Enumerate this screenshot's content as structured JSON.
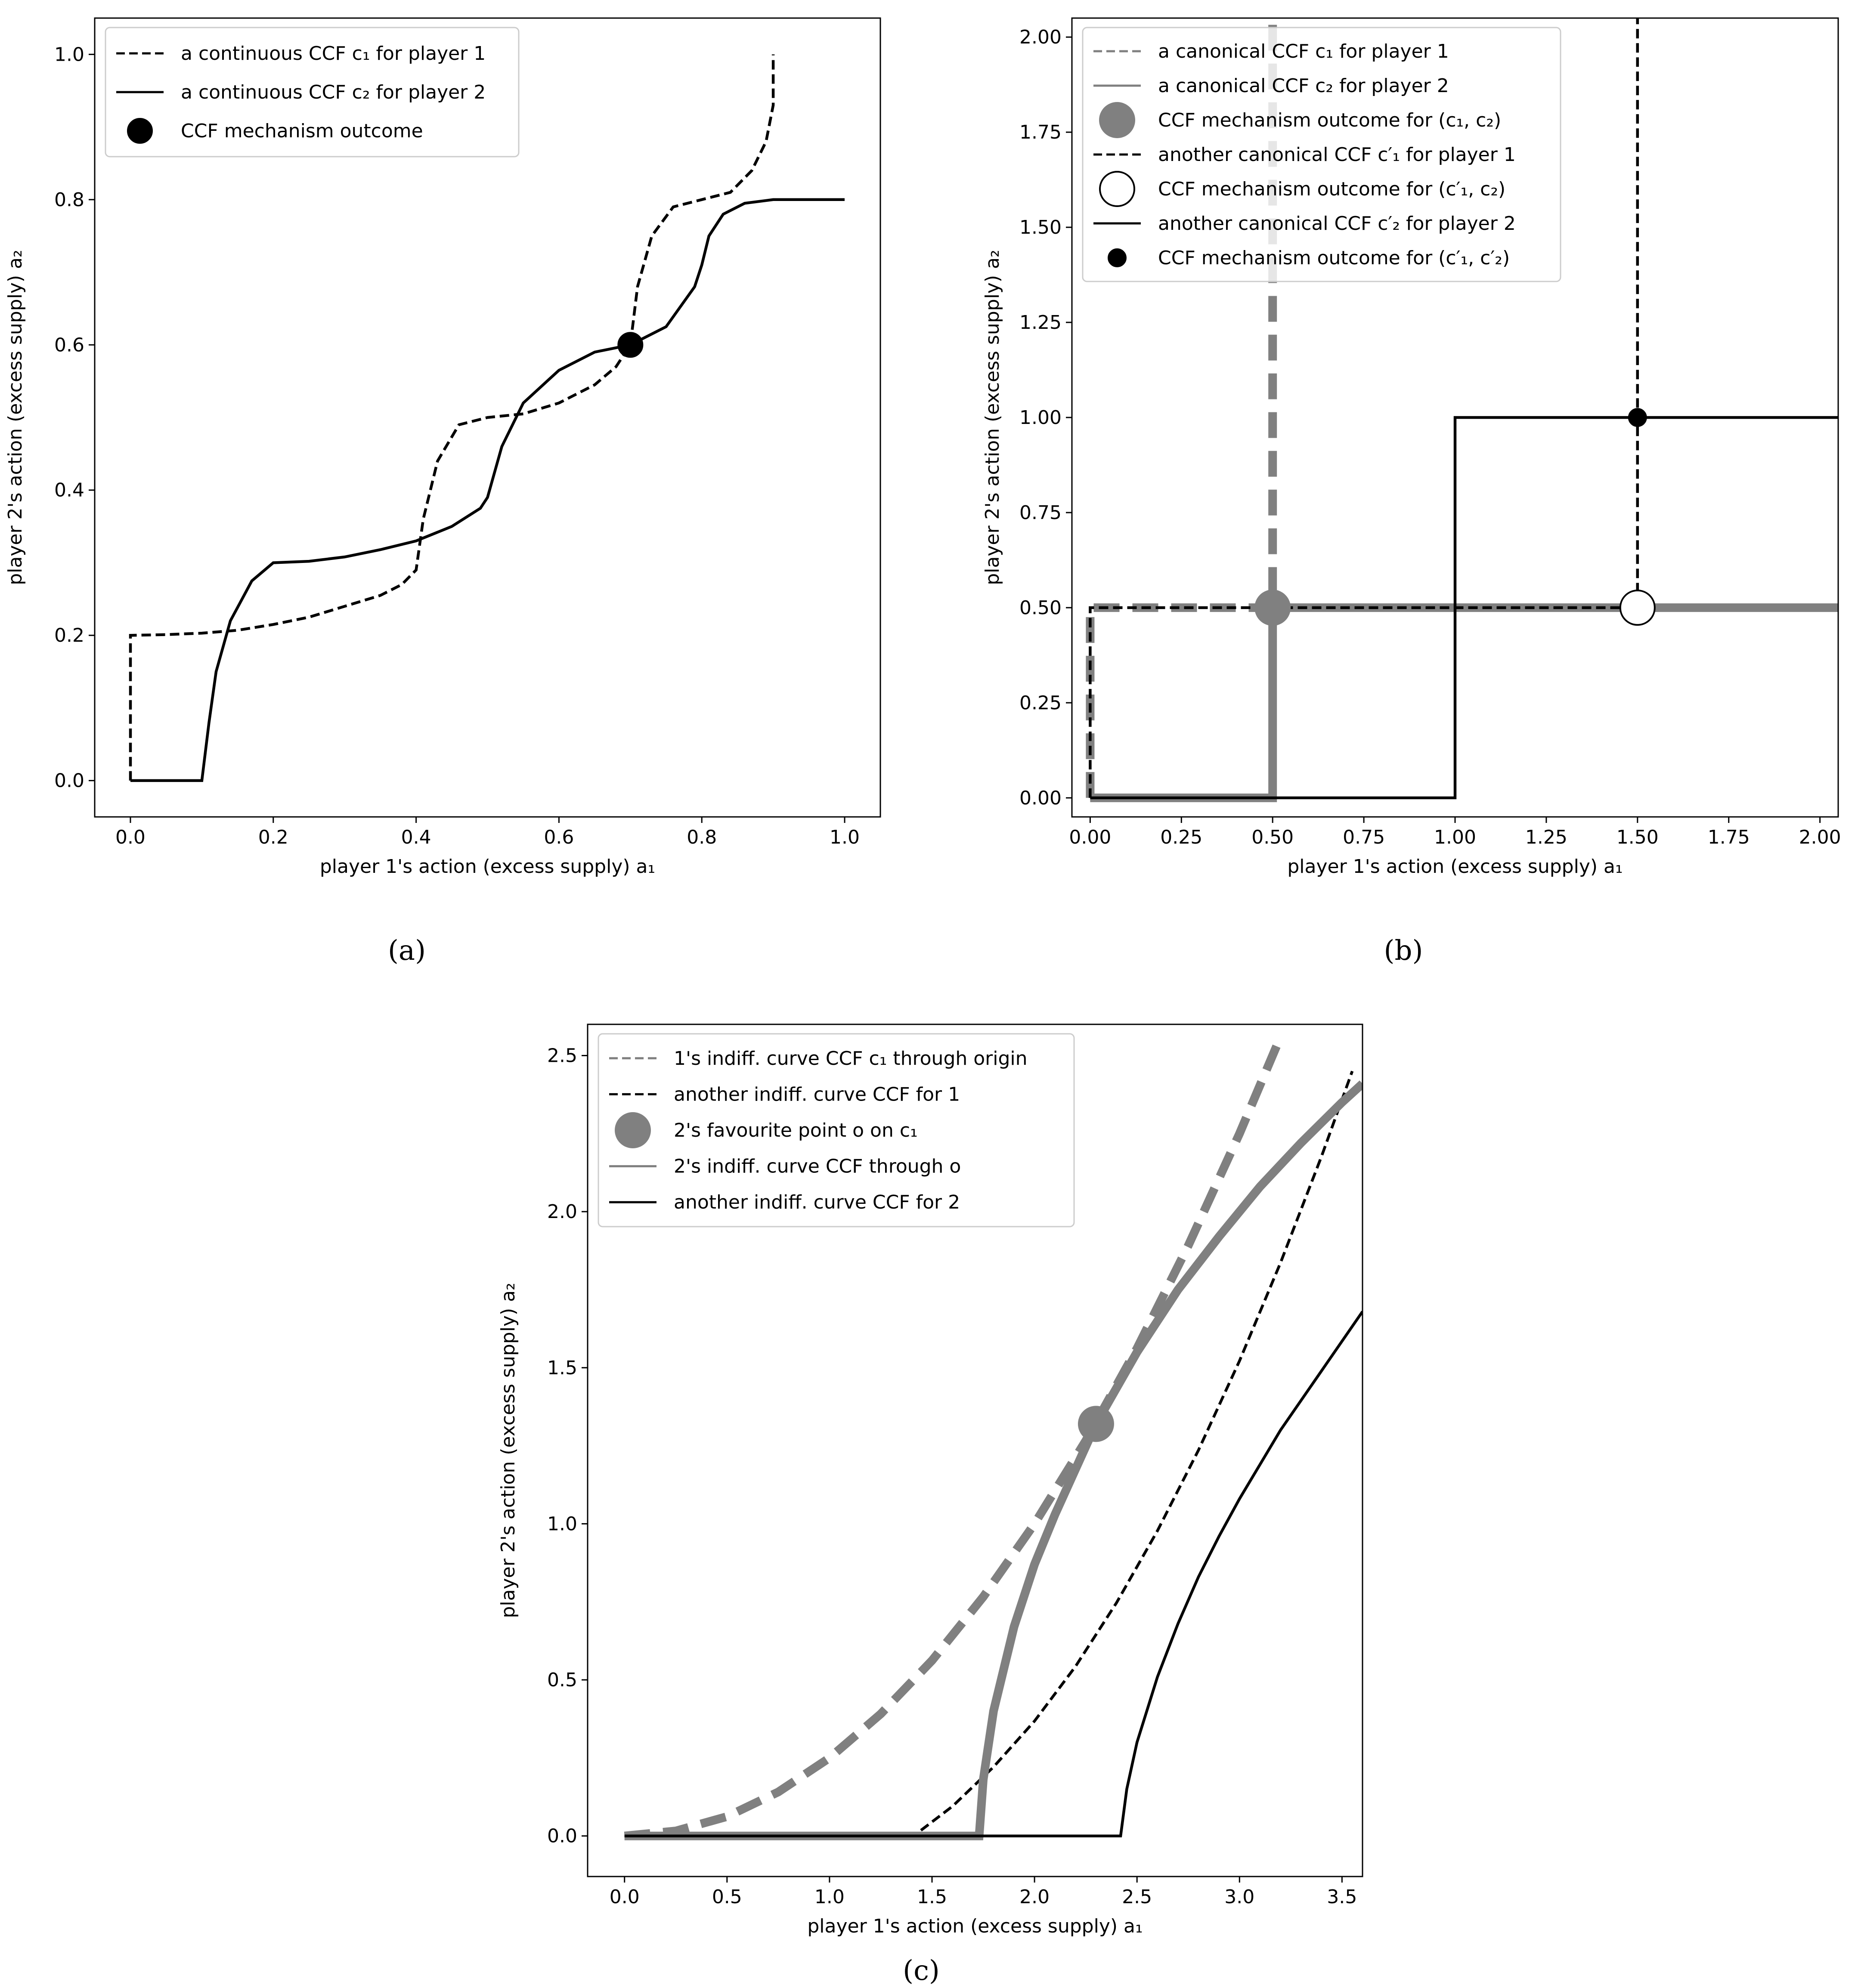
{
  "colors": {
    "black": "#000000",
    "gray": "#808080",
    "white": "#ffffff"
  },
  "chart_data": [
    {
      "id": "a",
      "type": "line",
      "caption": "(a)",
      "xlabel": "player 1's action (excess supply) a₁",
      "ylabel": "player 2's action (excess supply) a₂",
      "xlim": [
        -0.05,
        1.05
      ],
      "ylim": [
        -0.05,
        1.05
      ],
      "xticks": [
        0,
        0.2,
        0.4,
        0.6,
        0.8,
        1.0
      ],
      "xtick_labels": [
        "0.0",
        "0.2",
        "0.4",
        "0.6",
        "0.8",
        "1.0"
      ],
      "yticks": [
        0,
        0.2,
        0.4,
        0.6,
        0.8,
        1.0
      ],
      "ytick_labels": [
        "0.0",
        "0.2",
        "0.4",
        "0.6",
        "0.8",
        "1.0"
      ],
      "legend_position": "upper-left",
      "series": [
        {
          "name": "a continuous CCF c₁ for player 1",
          "kind": "line",
          "color": "black",
          "style": "dashed",
          "weight": "normal",
          "x": [
            0,
            0,
            0.05,
            0.1,
            0.15,
            0.2,
            0.25,
            0.3,
            0.35,
            0.38,
            0.4,
            0.4,
            0.41,
            0.43,
            0.46,
            0.5,
            0.55,
            0.6,
            0.65,
            0.68,
            0.7,
            0.7,
            0.71,
            0.73,
            0.76,
            0.8,
            0.84,
            0.87,
            0.89,
            0.9,
            0.9
          ],
          "y": [
            0,
            0.2,
            0.201,
            0.203,
            0.207,
            0.215,
            0.225,
            0.24,
            0.255,
            0.27,
            0.29,
            0.29,
            0.36,
            0.44,
            0.49,
            0.5,
            0.505,
            0.52,
            0.545,
            0.57,
            0.6,
            0.6,
            0.68,
            0.75,
            0.79,
            0.8,
            0.81,
            0.84,
            0.88,
            0.93,
            1.0
          ]
        },
        {
          "name": "a continuous CCF c₂ for player 2",
          "kind": "line",
          "color": "black",
          "style": "solid",
          "weight": "normal",
          "x": [
            0,
            0.1,
            0.1,
            0.11,
            0.12,
            0.14,
            0.17,
            0.2,
            0.25,
            0.3,
            0.35,
            0.4,
            0.45,
            0.49,
            0.5,
            0.5,
            0.52,
            0.55,
            0.6,
            0.65,
            0.7,
            0.75,
            0.79,
            0.8,
            0.8,
            0.81,
            0.83,
            0.86,
            0.9,
            0.95,
            1.0
          ],
          "y": [
            0,
            0,
            0,
            0.08,
            0.15,
            0.22,
            0.275,
            0.3,
            0.302,
            0.308,
            0.318,
            0.33,
            0.35,
            0.375,
            0.39,
            0.39,
            0.46,
            0.52,
            0.565,
            0.59,
            0.6,
            0.625,
            0.68,
            0.71,
            0.71,
            0.75,
            0.78,
            0.795,
            0.8,
            0.8,
            0.8
          ]
        },
        {
          "name": "CCF mechanism outcome",
          "kind": "marker",
          "color": "black",
          "fill": "black",
          "size": "medium",
          "x": [
            0.7
          ],
          "y": [
            0.6
          ]
        }
      ]
    },
    {
      "id": "b",
      "type": "line",
      "caption": "(b)",
      "xlabel": "player 1's action (excess supply) a₁",
      "ylabel": "player 2's action (excess supply) a₂",
      "xlim": [
        -0.05,
        2.05
      ],
      "ylim": [
        -0.05,
        2.05
      ],
      "xticks": [
        0,
        0.25,
        0.5,
        0.75,
        1.0,
        1.25,
        1.5,
        1.75,
        2.0
      ],
      "xtick_labels": [
        "0.00",
        "0.25",
        "0.50",
        "0.75",
        "1.00",
        "1.25",
        "1.50",
        "1.75",
        "2.00"
      ],
      "yticks": [
        0,
        0.25,
        0.5,
        0.75,
        1.0,
        1.25,
        1.5,
        1.75,
        2.0
      ],
      "ytick_labels": [
        "0.00",
        "0.25",
        "0.50",
        "0.75",
        "1.00",
        "1.25",
        "1.50",
        "1.75",
        "2.00"
      ],
      "legend_position": "upper-left",
      "series": [
        {
          "name": "a canonical CCF c₁ for player 1",
          "kind": "line",
          "color": "gray",
          "style": "dashed",
          "weight": "thick",
          "x": [
            0,
            0,
            0.5,
            0.5
          ],
          "y": [
            0,
            0.5,
            0.5,
            2.05
          ]
        },
        {
          "name": "a canonical CCF c₂ for player 2",
          "kind": "line",
          "color": "gray",
          "style": "solid",
          "weight": "thick",
          "x": [
            0,
            0.5,
            0.5,
            2.05
          ],
          "y": [
            0,
            0,
            0.5,
            0.5
          ]
        },
        {
          "name": "CCF mechanism outcome for (c₁, c₂)",
          "kind": "marker",
          "color": "gray",
          "fill": "gray",
          "size": "large",
          "x": [
            0.5
          ],
          "y": [
            0.5
          ]
        },
        {
          "name": "another canonical CCF c′₁ for player 1",
          "kind": "line",
          "color": "black",
          "style": "dashed",
          "weight": "normal",
          "x": [
            0,
            0,
            1.5,
            1.5
          ],
          "y": [
            0,
            0.5,
            0.5,
            2.05
          ]
        },
        {
          "name": "CCF mechanism outcome for (c′₁, c₂)",
          "kind": "marker",
          "color": "black",
          "fill": "white",
          "size": "large",
          "x": [
            1.5
          ],
          "y": [
            0.5
          ]
        },
        {
          "name": "another canonical CCF c′₂ for player 2",
          "kind": "line",
          "color": "black",
          "style": "solid",
          "weight": "normal",
          "x": [
            0,
            1.0,
            1.0,
            2.05
          ],
          "y": [
            0,
            0,
            1.0,
            1.0
          ]
        },
        {
          "name": "CCF mechanism outcome for (c′₁, c′₂)",
          "kind": "marker",
          "color": "black",
          "fill": "black",
          "size": "small",
          "x": [
            1.5
          ],
          "y": [
            1.0
          ]
        }
      ]
    },
    {
      "id": "c",
      "type": "line",
      "caption": "(c)",
      "xlabel": "player 1's action (excess supply) a₁",
      "ylabel": "player 2's action (excess supply) a₂",
      "xlim": [
        -0.18,
        3.6
      ],
      "ylim": [
        -0.13,
        2.6
      ],
      "xticks": [
        0,
        0.5,
        1.0,
        1.5,
        2.0,
        2.5,
        3.0,
        3.5
      ],
      "xtick_labels": [
        "0.0",
        "0.5",
        "1.0",
        "1.5",
        "2.0",
        "2.5",
        "3.0",
        "3.5"
      ],
      "yticks": [
        0,
        0.5,
        1.0,
        1.5,
        2.0,
        2.5
      ],
      "ytick_labels": [
        "0.0",
        "0.5",
        "1.0",
        "1.5",
        "2.0",
        "2.5"
      ],
      "legend_position": "upper-left",
      "series": [
        {
          "name": "1's indiff. curve CCF c₁ through origin",
          "kind": "line",
          "color": "gray",
          "style": "dashed",
          "weight": "thick",
          "x": [
            0,
            0.25,
            0.5,
            0.75,
            1.0,
            1.25,
            1.5,
            1.75,
            2.0,
            2.25,
            2.5,
            2.75,
            3.0,
            3.2
          ],
          "y": [
            0,
            0.016,
            0.062,
            0.141,
            0.25,
            0.391,
            0.562,
            0.766,
            1.0,
            1.266,
            1.562,
            1.891,
            2.25,
            2.56
          ]
        },
        {
          "name": "another indiff. curve CCF for 1",
          "kind": "line",
          "color": "black",
          "style": "dashed",
          "weight": "normal",
          "x": [
            0,
            1.41,
            1.6,
            1.8,
            2.0,
            2.2,
            2.4,
            2.6,
            2.8,
            3.0,
            3.2,
            3.4,
            3.55
          ],
          "y": [
            0,
            0,
            0.095,
            0.221,
            0.368,
            0.543,
            0.747,
            0.978,
            1.236,
            1.522,
            1.836,
            2.177,
            2.45
          ]
        },
        {
          "name": "2's favourite point o on c₁",
          "kind": "marker",
          "color": "gray",
          "fill": "gray",
          "size": "large",
          "x": [
            2.3
          ],
          "y": [
            1.32
          ]
        },
        {
          "name": "2's indiff. curve CCF through o",
          "kind": "line",
          "color": "gray",
          "style": "solid",
          "weight": "thick",
          "x": [
            0,
            1.73,
            1.73,
            1.75,
            1.8,
            1.9,
            2.0,
            2.1,
            2.3,
            2.5,
            2.7,
            2.9,
            3.1,
            3.3,
            3.5,
            3.6
          ],
          "y": [
            0,
            0,
            0,
            0.18,
            0.4,
            0.67,
            0.87,
            1.03,
            1.32,
            1.55,
            1.75,
            1.92,
            2.08,
            2.22,
            2.35,
            2.41
          ]
        },
        {
          "name": "another indiff. curve CCF for 2",
          "kind": "line",
          "color": "black",
          "style": "solid",
          "weight": "normal",
          "x": [
            0,
            2.42,
            2.42,
            2.45,
            2.5,
            2.6,
            2.7,
            2.8,
            2.9,
            3.0,
            3.2,
            3.4,
            3.6
          ],
          "y": [
            0,
            0,
            0,
            0.15,
            0.3,
            0.51,
            0.68,
            0.83,
            0.96,
            1.08,
            1.3,
            1.49,
            1.68
          ]
        }
      ]
    }
  ]
}
